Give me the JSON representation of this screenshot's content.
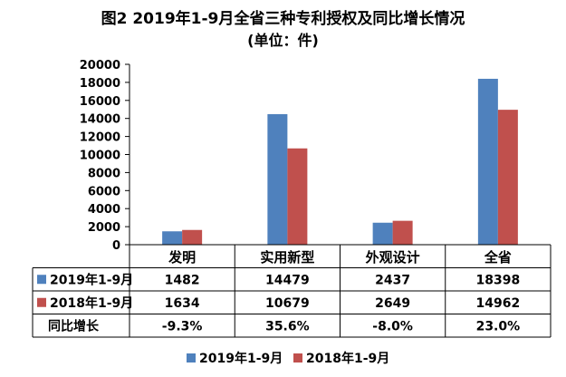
{
  "title_line1": "图2  2019年1-9月全省三种专利授权及同比增长情况",
  "title_line2": "(单位：件)",
  "chart_data": {
    "type": "bar",
    "title": "图2  2019年1-9月全省三种专利授权及同比增长情况",
    "subtitle": "(单位：件)",
    "categories": [
      "发明",
      "实用新型",
      "外观设计",
      "全省"
    ],
    "series": [
      {
        "name": "2019年1-9月",
        "values": [
          1482,
          14479,
          2437,
          18398
        ],
        "color": "#4f81bd"
      },
      {
        "name": "2018年1-9月",
        "values": [
          1634,
          10679,
          2649,
          14962
        ],
        "color": "#c0504d"
      }
    ],
    "yoy_row": {
      "label": "同比增长",
      "values": [
        "-9.3%",
        "35.6%",
        "-8.0%",
        "23.0%"
      ]
    },
    "ylim": [
      0,
      20000
    ],
    "yticks": [
      0,
      2000,
      4000,
      6000,
      8000,
      10000,
      12000,
      14000,
      16000,
      18000,
      20000
    ],
    "grid": false,
    "legend": "bottom",
    "data_table": true
  }
}
